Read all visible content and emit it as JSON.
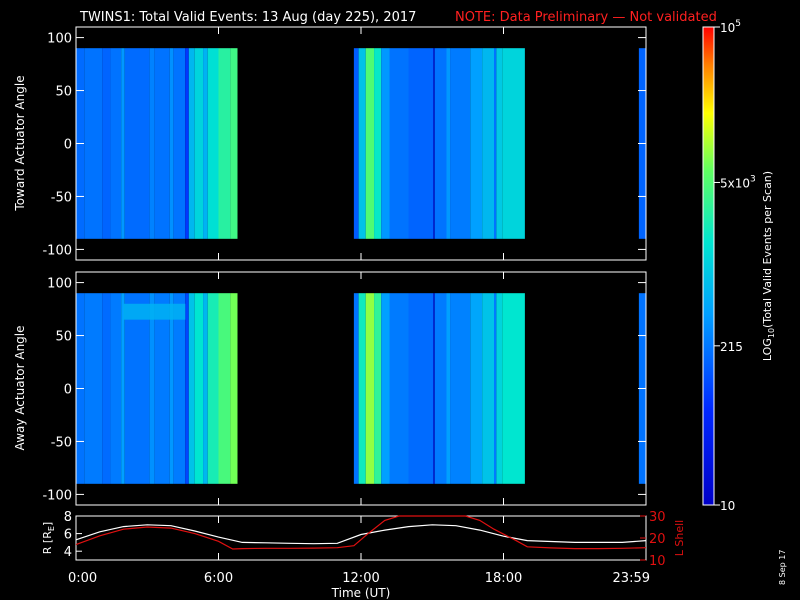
{
  "title": "TWINS1: Total Valid Events: 13 Aug (day 225), 2017",
  "note": "NOTE: Data Preliminary — Not validated",
  "colors": {
    "background": "#000000",
    "foreground": "#ffffff",
    "note": "#ff2020",
    "orbit_r_line": "#ffffff",
    "orbit_lshell_line": "#e01010"
  },
  "chart_data": [
    {
      "type": "heatmap",
      "name": "toward",
      "ylabel": "Toward Actuator Angle",
      "ylim": [
        -110,
        110
      ],
      "yticks": [
        100,
        50,
        0,
        -50,
        -100
      ],
      "ytick_labels": [
        "100",
        "50",
        "0",
        "-50",
        "-100"
      ],
      "xlim": [
        0,
        24
      ],
      "angle_range": [
        -90,
        90
      ],
      "data_intervals_hours": [
        [
          0.0,
          6.8
        ],
        [
          11.7,
          18.9
        ],
        [
          23.7,
          24.0
        ]
      ],
      "columns_log10": [
        {
          "start": 0.0,
          "end": 0.35,
          "v": 2.25
        },
        {
          "start": 0.35,
          "end": 1.1,
          "v": 2.3
        },
        {
          "start": 1.1,
          "end": 1.45,
          "v": 2.2
        },
        {
          "start": 1.45,
          "end": 1.9,
          "v": 2.3
        },
        {
          "start": 1.9,
          "end": 2.05,
          "v": 2.55
        },
        {
          "start": 2.05,
          "end": 3.1,
          "v": 2.25
        },
        {
          "start": 3.1,
          "end": 3.3,
          "v": 2.4
        },
        {
          "start": 3.3,
          "end": 3.95,
          "v": 2.3
        },
        {
          "start": 3.95,
          "end": 4.1,
          "v": 2.5
        },
        {
          "start": 4.1,
          "end": 4.6,
          "v": 2.3
        },
        {
          "start": 4.6,
          "end": 4.75,
          "v": 1.9
        },
        {
          "start": 4.75,
          "end": 5.0,
          "v": 2.8
        },
        {
          "start": 5.0,
          "end": 5.35,
          "v": 3.05
        },
        {
          "start": 5.35,
          "end": 5.55,
          "v": 2.75
        },
        {
          "start": 5.55,
          "end": 6.0,
          "v": 3.15
        },
        {
          "start": 6.0,
          "end": 6.5,
          "v": 3.45
        },
        {
          "start": 6.5,
          "end": 6.8,
          "v": 3.6
        },
        {
          "start": 11.7,
          "end": 11.9,
          "v": 2.15
        },
        {
          "start": 11.9,
          "end": 12.2,
          "v": 2.9
        },
        {
          "start": 12.2,
          "end": 12.55,
          "v": 3.7
        },
        {
          "start": 12.55,
          "end": 12.85,
          "v": 3.25
        },
        {
          "start": 12.85,
          "end": 13.2,
          "v": 2.55
        },
        {
          "start": 13.2,
          "end": 14.0,
          "v": 2.3
        },
        {
          "start": 14.0,
          "end": 15.05,
          "v": 2.2
        },
        {
          "start": 15.05,
          "end": 15.1,
          "v": 1.0
        },
        {
          "start": 15.1,
          "end": 15.6,
          "v": 2.3
        },
        {
          "start": 15.6,
          "end": 15.75,
          "v": 2.55
        },
        {
          "start": 15.75,
          "end": 16.6,
          "v": 2.35
        },
        {
          "start": 16.6,
          "end": 17.1,
          "v": 2.6
        },
        {
          "start": 17.1,
          "end": 17.6,
          "v": 2.8
        },
        {
          "start": 17.6,
          "end": 17.7,
          "v": 2.3
        },
        {
          "start": 17.7,
          "end": 17.95,
          "v": 2.95
        },
        {
          "start": 17.95,
          "end": 18.9,
          "v": 3.05
        },
        {
          "start": 23.7,
          "end": 24.0,
          "v": 2.2
        }
      ]
    },
    {
      "type": "heatmap",
      "name": "away",
      "ylabel": "Away Actuator Angle",
      "ylim": [
        -110,
        110
      ],
      "yticks": [
        100,
        50,
        0,
        -50,
        -100
      ],
      "ytick_labels": [
        "100",
        "50",
        "0",
        "-50",
        "-100"
      ],
      "xlim": [
        0,
        24
      ],
      "angle_range": [
        -90,
        90
      ],
      "data_intervals_hours": [
        [
          0.0,
          6.8
        ],
        [
          11.7,
          18.9
        ],
        [
          23.7,
          24.0
        ]
      ],
      "band_angle_range": [
        65,
        80
      ],
      "band_hours": [
        2.0,
        4.6
      ],
      "columns_log10": [
        {
          "start": 0.0,
          "end": 0.35,
          "v": 2.3
        },
        {
          "start": 0.35,
          "end": 1.1,
          "v": 2.35
        },
        {
          "start": 1.1,
          "end": 1.45,
          "v": 2.25
        },
        {
          "start": 1.45,
          "end": 1.9,
          "v": 2.35
        },
        {
          "start": 1.9,
          "end": 2.05,
          "v": 2.6
        },
        {
          "start": 2.05,
          "end": 3.1,
          "v": 2.3
        },
        {
          "start": 3.1,
          "end": 3.3,
          "v": 2.5
        },
        {
          "start": 3.3,
          "end": 3.95,
          "v": 2.35
        },
        {
          "start": 3.95,
          "end": 4.1,
          "v": 2.55
        },
        {
          "start": 4.1,
          "end": 4.6,
          "v": 2.35
        },
        {
          "start": 4.6,
          "end": 4.75,
          "v": 2.0
        },
        {
          "start": 4.75,
          "end": 5.0,
          "v": 2.9
        },
        {
          "start": 5.0,
          "end": 5.35,
          "v": 3.2
        },
        {
          "start": 5.35,
          "end": 5.55,
          "v": 2.8
        },
        {
          "start": 5.55,
          "end": 6.0,
          "v": 3.35
        },
        {
          "start": 6.0,
          "end": 6.5,
          "v": 3.65
        },
        {
          "start": 6.5,
          "end": 6.8,
          "v": 3.85
        },
        {
          "start": 11.7,
          "end": 11.9,
          "v": 2.3
        },
        {
          "start": 11.9,
          "end": 12.2,
          "v": 3.3
        },
        {
          "start": 12.2,
          "end": 12.55,
          "v": 3.95
        },
        {
          "start": 12.55,
          "end": 12.85,
          "v": 3.5
        },
        {
          "start": 12.85,
          "end": 13.2,
          "v": 2.6
        },
        {
          "start": 13.2,
          "end": 14.0,
          "v": 2.35
        },
        {
          "start": 14.0,
          "end": 15.05,
          "v": 2.25
        },
        {
          "start": 15.05,
          "end": 15.1,
          "v": 1.0
        },
        {
          "start": 15.1,
          "end": 15.6,
          "v": 2.35
        },
        {
          "start": 15.6,
          "end": 15.75,
          "v": 2.6
        },
        {
          "start": 15.75,
          "end": 16.6,
          "v": 2.4
        },
        {
          "start": 16.6,
          "end": 17.1,
          "v": 2.65
        },
        {
          "start": 17.1,
          "end": 17.6,
          "v": 2.9
        },
        {
          "start": 17.6,
          "end": 17.7,
          "v": 2.35
        },
        {
          "start": 17.7,
          "end": 17.95,
          "v": 3.05
        },
        {
          "start": 17.95,
          "end": 18.9,
          "v": 3.2
        },
        {
          "start": 23.7,
          "end": 24.0,
          "v": 2.3
        }
      ]
    },
    {
      "type": "line",
      "name": "orbit",
      "ylabel_left": "R [R",
      "ylabel_left_sub": "E",
      "ylabel_left_close": "]",
      "ylabel_right": "L Shell",
      "ylim_left": [
        3,
        8
      ],
      "yticks_left": [
        8,
        6,
        4
      ],
      "ylim_right": [
        10,
        30
      ],
      "yticks_right": [
        30,
        20,
        10
      ],
      "xlim": [
        0,
        24
      ],
      "series": [
        {
          "axis": "left",
          "color": "#ffffff",
          "x": [
            0,
            1,
            2,
            3,
            4,
            5,
            6,
            7,
            8,
            9,
            10,
            11,
            12,
            13,
            14,
            15,
            16,
            17,
            18,
            19,
            20,
            21,
            22,
            23,
            24
          ],
          "y": [
            5.3,
            6.2,
            6.8,
            7.0,
            6.9,
            6.3,
            5.6,
            5.0,
            4.95,
            4.9,
            4.85,
            4.9,
            5.9,
            6.4,
            6.8,
            7.0,
            6.9,
            6.4,
            5.7,
            5.2,
            5.1,
            5.0,
            5.0,
            5.0,
            5.2
          ]
        },
        {
          "axis": "right",
          "color": "#e01010",
          "x": [
            0,
            1,
            2,
            3,
            4,
            5,
            6,
            6.6,
            7,
            8,
            9,
            10,
            11,
            11.7,
            12.3,
            13.0,
            13.6,
            16.4,
            17.0,
            17.6,
            18.5,
            19,
            20,
            21,
            22,
            23,
            24
          ],
          "y": [
            17,
            21,
            24,
            25,
            24.5,
            22,
            18.5,
            15.0,
            15.2,
            15.3,
            15.3,
            15.4,
            15.6,
            16.5,
            22,
            28,
            30,
            30,
            28,
            24,
            19,
            16,
            15.5,
            15.2,
            15.2,
            15.3,
            15.6
          ]
        }
      ]
    }
  ],
  "colorbar": {
    "label_main": "LOG",
    "label_sub": "10",
    "label_rest": "(Total Valid Events per Scan)",
    "log_range": [
      1,
      5
    ],
    "ticks": [
      {
        "log": 5.0,
        "label": "10",
        "sup": "5"
      },
      {
        "log": 3.699,
        "label": "5x10",
        "sup": "3"
      },
      {
        "log": 2.332,
        "label": "215",
        "sup": ""
      },
      {
        "log": 1.0,
        "label": "10",
        "sup": ""
      }
    ]
  },
  "x_axis": {
    "label": "Time (UT)",
    "ticks": [
      {
        "hour": 0,
        "label": "0:00"
      },
      {
        "hour": 6,
        "label": "6:00"
      },
      {
        "hour": 12,
        "label": "12:00"
      },
      {
        "hour": 18,
        "label": "18:00"
      },
      {
        "hour": 24,
        "label": "23:59"
      }
    ]
  },
  "stamp": "8 Sep 17"
}
